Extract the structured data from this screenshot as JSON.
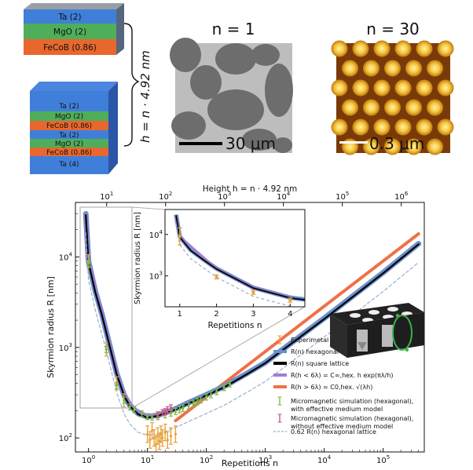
{
  "stack": {
    "top_layers": [
      {
        "label": "Ta (2)",
        "color": "#3f7fd9"
      },
      {
        "label": "MgO (2)",
        "color": "#4fae5a"
      },
      {
        "label": "FeCoB (0.86)",
        "color": "#e8672e"
      }
    ],
    "bottom_layers": [
      {
        "label": "Ta (2)",
        "color": "#3f7fd9"
      },
      {
        "label": "MgO (2)",
        "color": "#4fae5a"
      },
      {
        "label": "FeCoB (0.86)",
        "color": "#e8672e"
      },
      {
        "label": "Ta (2)",
        "color": "#3f7fd9"
      },
      {
        "label": "MgO (2)",
        "color": "#4fae5a"
      },
      {
        "label": "FeCoB (0.86)",
        "color": "#e8672e"
      },
      {
        "label": "Ta (4)",
        "color": "#3f7fd9"
      }
    ],
    "height_label": "h = n · 4.92 nm"
  },
  "panels": {
    "n1": {
      "title": "n = 1",
      "scale": "30 μm"
    },
    "n30": {
      "title": "n = 30",
      "scale": "0.3 μm"
    }
  },
  "chart_data": {
    "type": "line",
    "xscale": "log",
    "yscale": "log",
    "xlim": [
      0.6,
      500000
    ],
    "ylim": [
      70,
      40000
    ],
    "xlabel": "Repetitions n",
    "ylabel": "Skyrmion radius R [nm]",
    "top_axis_label": "Height h = n · 4.92 nm",
    "x_ticks": [
      "10^0",
      "10^1",
      "10^2",
      "10^3",
      "10^4",
      "10^5"
    ],
    "top_ticks": [
      "10^1",
      "10^2",
      "10^3",
      "10^4",
      "10^5",
      "10^6"
    ],
    "y_ticks": [
      "10^2",
      "10^3",
      "10^4"
    ],
    "legend": [
      {
        "label": "Experimetal data",
        "color": "#e8a23a",
        "kind": "err"
      },
      {
        "label": "R(n) hexagonal lattice",
        "color": "#6b8fc9",
        "kind": "line"
      },
      {
        "label": "R(n) square lattice",
        "color": "#000000",
        "kind": "line"
      },
      {
        "label": "R(h < 6λ) = C∞,hex. h exp(πλ/h)",
        "color": "#9b7fd3",
        "kind": "line"
      },
      {
        "label": "R(h > 6λ) = C0,hex. √(λh)",
        "color": "#f07048",
        "kind": "line"
      },
      {
        "label": "Micromagnetic simulation (hexagonal), with effective medium model",
        "color": "#7dbb3c",
        "kind": "err"
      },
      {
        "label": "Micromagnetic simulation (hexagonal), without effective medium model",
        "color": "#c8558a",
        "kind": "err"
      },
      {
        "label": "0.62 R(n) hexagonal lattice",
        "color": "#9aaed0",
        "kind": "dash"
      }
    ],
    "legend_placement": "lower-right",
    "series": [
      {
        "name": "R(n) hexagonal lattice",
        "x": [
          0.9,
          1,
          1.3,
          1.7,
          2,
          3,
          4,
          5,
          7,
          10,
          15,
          20,
          30,
          50,
          100,
          200,
          500,
          1000,
          10000,
          100000,
          400000
        ],
        "values": [
          30000,
          9000,
          4200,
          2300,
          1500,
          520,
          300,
          230,
          185,
          172,
          178,
          190,
          210,
          245,
          300,
          370,
          520,
          680,
          2100,
          6700,
          14000
        ]
      },
      {
        "name": "R(n) square lattice",
        "x": [
          0.9,
          1,
          1.3,
          1.7,
          2,
          3,
          4,
          5,
          7,
          10,
          15,
          20,
          30,
          50,
          100,
          200,
          500,
          1000,
          10000,
          100000,
          400000
        ],
        "values": [
          29000,
          8700,
          4100,
          2250,
          1470,
          510,
          295,
          225,
          182,
          168,
          175,
          187,
          206,
          240,
          295,
          362,
          510,
          670,
          2060,
          6600,
          13800
        ]
      },
      {
        "name": "R(h < 6λ)",
        "x": [
          0.9,
          1,
          2,
          3,
          4,
          6,
          10,
          15,
          20,
          25
        ],
        "values": [
          29000,
          8800,
          1480,
          515,
          298,
          210,
          175,
          178,
          186,
          192
        ]
      },
      {
        "name": "R(h > 6λ)",
        "x": [
          30,
          50,
          100,
          1000,
          10000,
          100000,
          400000
        ],
        "values": [
          155,
          200,
          285,
          900,
          2850,
          9000,
          18000
        ]
      },
      {
        "name": "0.62 R(n) hexagonal lattice",
        "x": [
          0.9,
          1,
          1.3,
          2,
          3,
          4,
          5,
          7,
          10,
          15,
          20,
          30,
          50,
          100,
          200,
          500,
          1000,
          10000,
          100000,
          400000
        ],
        "values": [
          18600,
          5600,
          2600,
          930,
          320,
          186,
          143,
          115,
          107,
          110,
          118,
          130,
          152,
          186,
          229,
          322,
          420,
          1300,
          4150,
          8700
        ]
      },
      {
        "name": "Experimetal data",
        "x": [
          1,
          2,
          3,
          4,
          10,
          11,
          12,
          13,
          14,
          15,
          16,
          17,
          18,
          20,
          22,
          25,
          30
        ],
        "values": [
          9000,
          950,
          400,
          260,
          110,
          95,
          120,
          100,
          85,
          105,
          92,
          110,
          100,
          115,
          95,
          105,
          110
        ]
      },
      {
        "name": "Micromagnetic simulation (hexagonal), with effective medium model",
        "x": [
          1,
          2,
          3,
          4,
          5,
          6,
          8,
          10,
          12,
          15,
          20,
          25,
          30,
          35,
          40,
          50,
          60,
          70,
          80,
          100,
          120,
          150,
          200,
          250
        ],
        "values": [
          8500,
          950,
          380,
          260,
          220,
          205,
          185,
          172,
          170,
          172,
          180,
          188,
          196,
          205,
          212,
          225,
          238,
          250,
          262,
          283,
          300,
          325,
          360,
          395
        ]
      },
      {
        "name": "Micromagnetic simulation (hexagonal), without effective medium model",
        "x": [
          15,
          18,
          20,
          22,
          25
        ],
        "values": [
          180,
          190,
          195,
          205,
          215
        ]
      }
    ],
    "inset": {
      "xlabel": "Repetitions n",
      "ylabel": "Skyrmion radius R [nm]",
      "x_ticks": [
        "1",
        "2",
        "3",
        "4"
      ],
      "y_ticks": [
        "10^3",
        "10^4"
      ],
      "xlim": [
        0.6,
        4.4
      ],
      "ylim": [
        180,
        40000
      ],
      "experimental": {
        "x": [
          1,
          2,
          3,
          4
        ],
        "values": [
          9000,
          950,
          400,
          260
        ]
      }
    }
  }
}
